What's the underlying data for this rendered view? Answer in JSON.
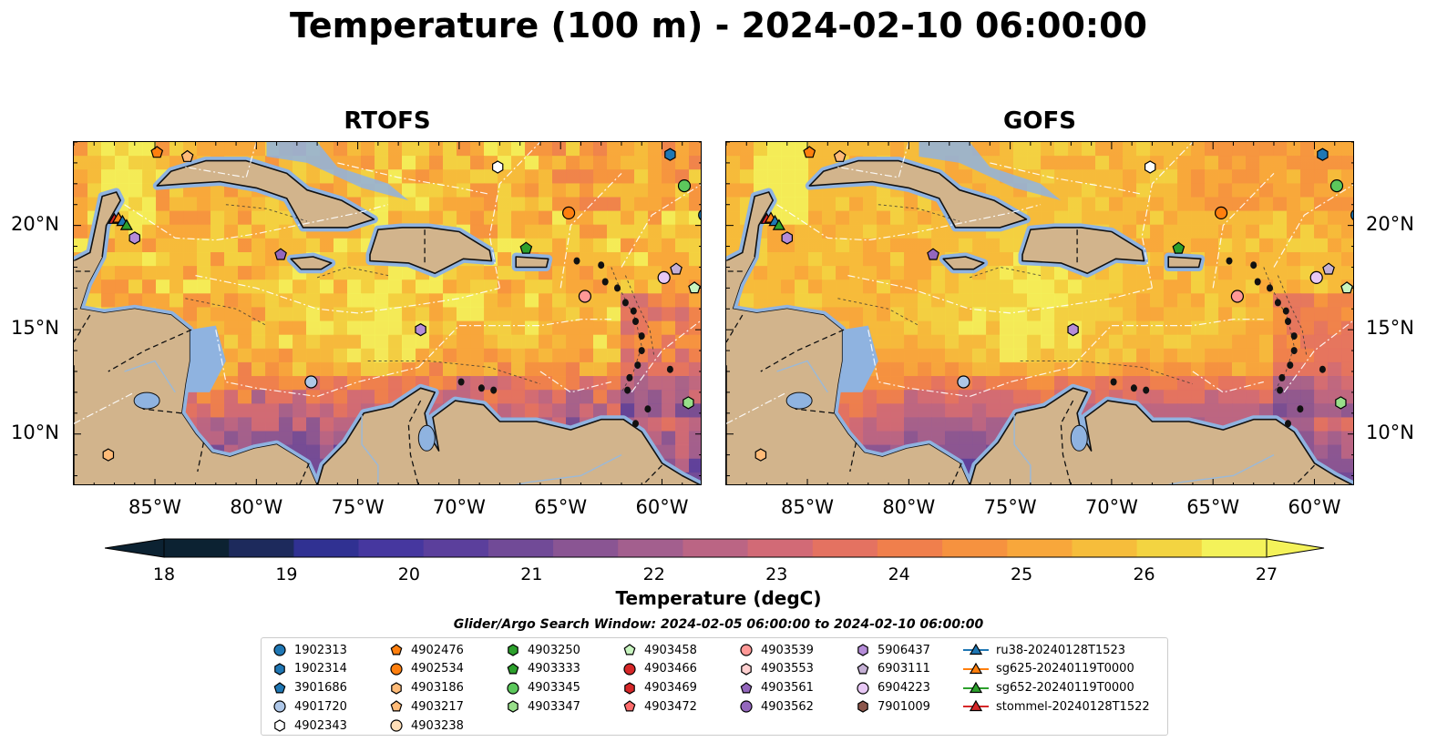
{
  "title": "Temperature (100 m) - 2024-02-10 06:00:00",
  "panels": [
    {
      "title": "RTOFS"
    },
    {
      "title": "GOFS"
    }
  ],
  "axes": {
    "lon_ticks": [
      "85°W",
      "80°W",
      "75°W",
      "70°W",
      "65°W",
      "60°W"
    ],
    "lat_ticks": [
      "20°N",
      "15°N",
      "10°N"
    ],
    "lon_range": [
      -89,
      -58
    ],
    "lat_range": [
      7.5,
      24
    ]
  },
  "colorbar": {
    "label": "Temperature (degC)",
    "ticks": [
      "18",
      "19",
      "20",
      "21",
      "22",
      "23",
      "24",
      "25",
      "26",
      "27"
    ],
    "min": 18,
    "max": 27,
    "colors": [
      "#0c2232",
      "#1d2a5c",
      "#303192",
      "#46379f",
      "#5b3f9c",
      "#714a97",
      "#8a5593",
      "#a35f8e",
      "#bb6584",
      "#d26a76",
      "#e47261",
      "#f07f4c",
      "#f6923f",
      "#f8a73b",
      "#f6bd3b",
      "#f3d441",
      "#f4f25a"
    ]
  },
  "search_window": "Glider/Argo Search Window: 2024-02-05 06:00:00 to 2024-02-10 06:00:00",
  "land_color": "#d2b48c",
  "water_shallow_color": "#8fb3e0",
  "legend": [
    {
      "label": "1902313",
      "marker": "circle",
      "color": "#1f77b4"
    },
    {
      "label": "1902314",
      "marker": "hexagon",
      "color": "#1f77b4"
    },
    {
      "label": "3901686",
      "marker": "pentagon",
      "color": "#1f77b4"
    },
    {
      "label": "4901720",
      "marker": "circle",
      "color": "#aec7e8"
    },
    {
      "label": "4902343",
      "marker": "hexagon",
      "color": "#ffffff"
    },
    {
      "label": "4902476",
      "marker": "pentagon",
      "color": "#ff7f0e"
    },
    {
      "label": "4902534",
      "marker": "circle",
      "color": "#ff7f0e"
    },
    {
      "label": "4903186",
      "marker": "hexagon",
      "color": "#ffbb78"
    },
    {
      "label": "4903217",
      "marker": "pentagon",
      "color": "#ffbb78"
    },
    {
      "label": "4903238",
      "marker": "circle",
      "color": "#ffdfb8"
    },
    {
      "label": "4903250",
      "marker": "hexagon",
      "color": "#2ca02c"
    },
    {
      "label": "4903333",
      "marker": "pentagon",
      "color": "#2ca02c"
    },
    {
      "label": "4903345",
      "marker": "circle",
      "color": "#5cc85c"
    },
    {
      "label": "4903347",
      "marker": "hexagon",
      "color": "#98df8a"
    },
    {
      "label": "4903458",
      "marker": "pentagon",
      "color": "#c8f5c0"
    },
    {
      "label": "4903466",
      "marker": "circle",
      "color": "#d62728"
    },
    {
      "label": "4903469",
      "marker": "hexagon",
      "color": "#d62728"
    },
    {
      "label": "4903472",
      "marker": "pentagon",
      "color": "#ff6b6b"
    },
    {
      "label": "4903539",
      "marker": "circle",
      "color": "#ff9896"
    },
    {
      "label": "4903553",
      "marker": "hexagon",
      "color": "#ffd0d0"
    },
    {
      "label": "4903561",
      "marker": "pentagon",
      "color": "#9467bd"
    },
    {
      "label": "4903562",
      "marker": "circle",
      "color": "#9467bd"
    },
    {
      "label": "5906437",
      "marker": "hexagon",
      "color": "#b58cd8"
    },
    {
      "label": "6903111",
      "marker": "pentagon",
      "color": "#c5b0d5"
    },
    {
      "label": "6904223",
      "marker": "circle",
      "color": "#e8c8f5"
    },
    {
      "label": "7901009",
      "marker": "hexagon",
      "color": "#8c564b"
    },
    {
      "label": "ru38-20240128T1523",
      "marker": "triangle-line",
      "color": "#1f77b4"
    },
    {
      "label": "sg625-20240119T0000",
      "marker": "triangle-line",
      "color": "#ff7f0e"
    },
    {
      "label": "sg652-20240119T0000",
      "marker": "triangle-line",
      "color": "#2ca02c"
    },
    {
      "label": "stommel-20240128T1522",
      "marker": "triangle-line",
      "color": "#d62728"
    }
  ],
  "map_markers": [
    {
      "id": "4902476",
      "lon": -84.9,
      "lat": 23.5
    },
    {
      "id": "4903217",
      "lon": -83.4,
      "lat": 23.3
    },
    {
      "id": "1902314",
      "lon": -59.6,
      "lat": 23.4
    },
    {
      "id": "4902343",
      "lon": -68.1,
      "lat": 22.8
    },
    {
      "id": "4903345",
      "lon": -58.9,
      "lat": 21.9
    },
    {
      "id": "4902534",
      "lon": -64.6,
      "lat": 20.6
    },
    {
      "id": "1902313",
      "lon": -57.9,
      "lat": 20.5
    },
    {
      "id": "5906437",
      "lon": -86.0,
      "lat": 19.4
    },
    {
      "id": "4903333",
      "lon": -66.7,
      "lat": 18.9
    },
    {
      "id": "4903561",
      "lon": -78.8,
      "lat": 18.6
    },
    {
      "id": "6904223",
      "lon": -59.9,
      "lat": 17.5
    },
    {
      "id": "6903111",
      "lon": -59.3,
      "lat": 17.9
    },
    {
      "id": "4903458",
      "lon": -58.4,
      "lat": 17.0
    },
    {
      "id": "4903539",
      "lon": -63.8,
      "lat": 16.6
    },
    {
      "id": "5906437",
      "lon": -71.9,
      "lat": 15.0
    },
    {
      "id": "4901720",
      "lon": -77.3,
      "lat": 12.5
    },
    {
      "id": "4903347",
      "lon": -58.7,
      "lat": 11.5
    },
    {
      "id": "4903186",
      "lon": -87.3,
      "lat": 9.0
    }
  ],
  "glider_markers": [
    {
      "id": "stommel",
      "lon": -87.0,
      "lat": 20.3,
      "color": "#d62728"
    },
    {
      "id": "sg625",
      "lon": -86.8,
      "lat": 20.35,
      "color": "#ff7f0e"
    },
    {
      "id": "ru38",
      "lon": -86.6,
      "lat": 20.2,
      "color": "#1f77b4"
    },
    {
      "id": "sg652",
      "lon": -86.4,
      "lat": 20.0,
      "color": "#2ca02c"
    }
  ]
}
